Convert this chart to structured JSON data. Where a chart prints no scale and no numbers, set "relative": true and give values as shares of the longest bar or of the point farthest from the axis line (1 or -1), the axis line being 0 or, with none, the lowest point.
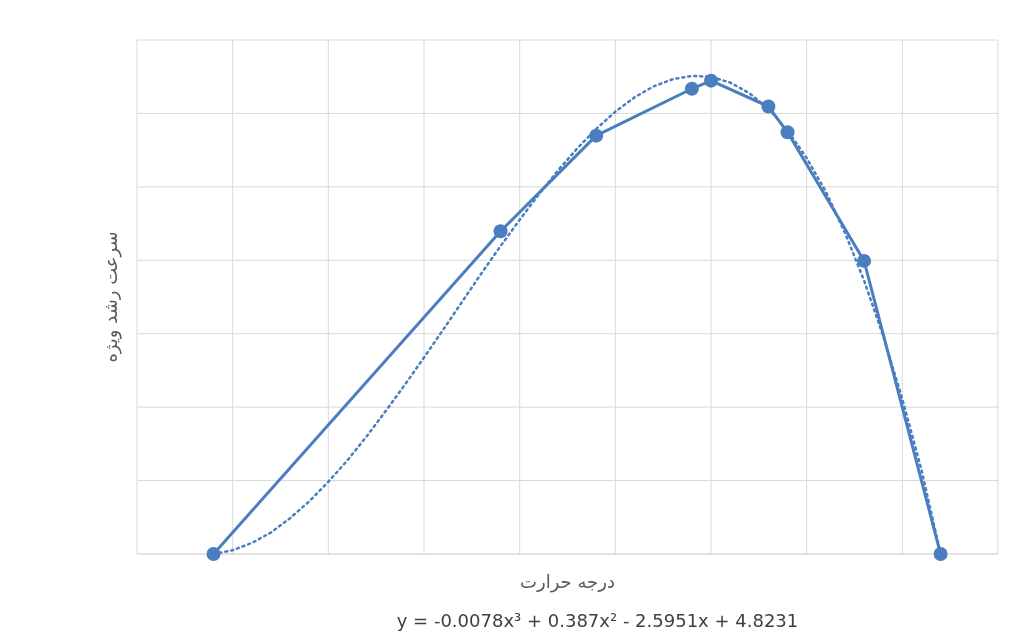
{
  "chart_data": {
    "type": "line",
    "xlabel": "درجه حرارت",
    "ylabel": "سرعت رشد ویژه",
    "relative": true,
    "grid": true,
    "categories": [
      null,
      null,
      null,
      null,
      null,
      null,
      null,
      null,
      null,
      null,
      null,
      null,
      null,
      null,
      null,
      null,
      null,
      null,
      null,
      null,
      null,
      null,
      null,
      null,
      null,
      null,
      null,
      null,
      null,
      null,
      null,
      null,
      null,
      null,
      null,
      null,
      null,
      null,
      null
    ],
    "annotations": [
      "y = -0.0078x³ + 0.387x² - 2.5951x + 4.8231"
    ],
    "series": [
      {
        "color": "#4a7ebf",
        "marker": "circle",
        "line_style": "solid",
        "values": [
          0,
          null,
          null,
          null,
          null,
          null,
          null,
          null,
          null,
          null,
          null,
          null,
          null,
          null,
          null,
          0.675,
          null,
          null,
          null,
          null,
          0.875,
          null,
          null,
          null,
          null,
          0.973,
          0.99,
          null,
          null,
          0.936,
          0.882,
          null,
          null,
          null,
          0.613,
          null,
          null,
          null,
          0
        ]
      },
      {
        "color": "#4a7ebf",
        "marker": "none",
        "line_style": "dotted",
        "values": [
          0,
          0.008,
          0.023,
          0.045,
          0.075,
          0.11,
          0.151,
          0.196,
          0.246,
          0.299,
          0.354,
          0.411,
          0.469,
          0.528,
          0.587,
          0.644,
          0.699,
          0.752,
          0.802,
          0.848,
          0.889,
          0.925,
          0.955,
          0.978,
          0.993,
          1,
          0.998,
          0.986,
          0.964,
          0.931,
          0.886,
          0.828,
          0.758,
          0.672,
          0.572,
          0.456,
          0.324,
          0.176,
          0
        ]
      }
    ]
  }
}
